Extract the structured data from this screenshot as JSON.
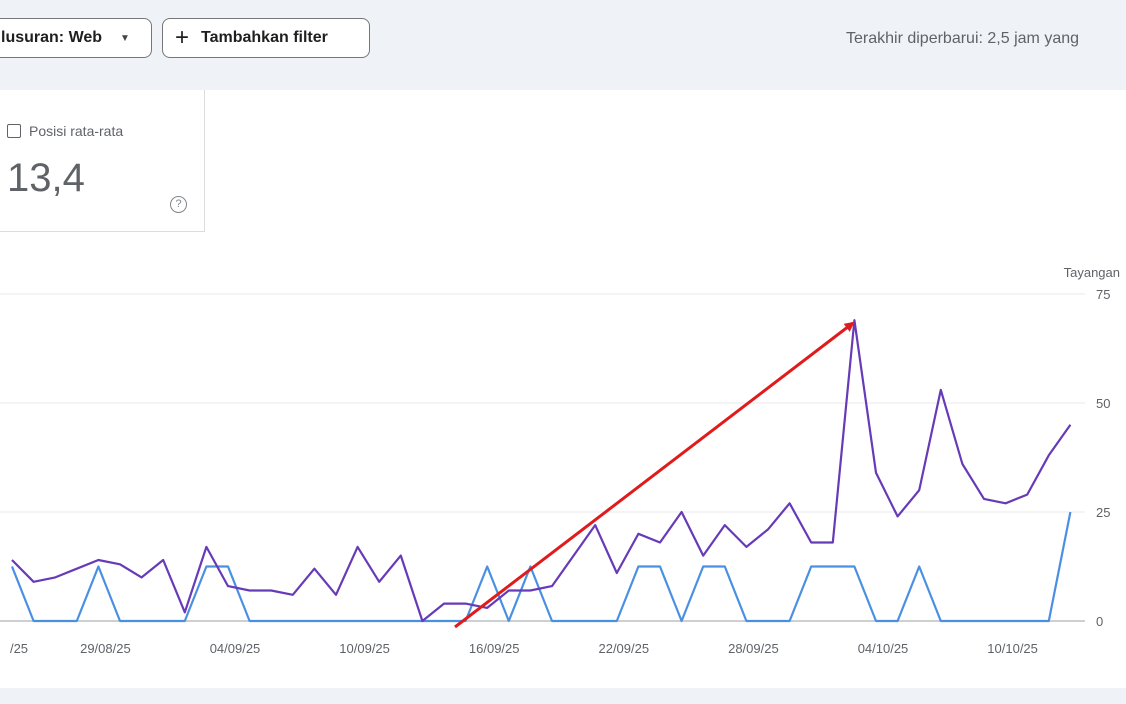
{
  "toolbar": {
    "search_type_label": "lusuran: Web",
    "add_filter_label": "Tambahkan filter",
    "last_updated": "Terakhir diperbarui: 2,5 jam yang"
  },
  "metric_card": {
    "label": "Posisi rata-rata",
    "value": "13,4",
    "help_icon": "help-icon"
  },
  "chart_data": {
    "type": "line",
    "y_axis_label": "Tayangan",
    "ylim": [
      0,
      75
    ],
    "y_ticks": [
      0,
      25,
      50,
      75
    ],
    "grid": true,
    "x_tick_labels": [
      "/25",
      "29/08/25",
      "04/09/25",
      "10/09/25",
      "16/09/25",
      "22/09/25",
      "28/09/25",
      "04/10/25",
      "10/10/25"
    ],
    "x_tick_indices": [
      0,
      4,
      10,
      16,
      22,
      28,
      34,
      40,
      46
    ],
    "series": [
      {
        "color": "#673ab7",
        "values": [
          14,
          9,
          10,
          12,
          14,
          13,
          10,
          14,
          2,
          17,
          8,
          7,
          7,
          6,
          12,
          6,
          17,
          9,
          15,
          0,
          4,
          4,
          3,
          7,
          7,
          8,
          15,
          22,
          11,
          20,
          18,
          25,
          15,
          22,
          17,
          21,
          27,
          18,
          18,
          69,
          34,
          24,
          30,
          53,
          36,
          28,
          27,
          29,
          38,
          45
        ]
      },
      {
        "color": "#4a90e2",
        "values": [
          12.5,
          0,
          0,
          0,
          12.5,
          0,
          0,
          0,
          0,
          12.5,
          12.5,
          0,
          0,
          0,
          0,
          0,
          0,
          0,
          0,
          0,
          0,
          0,
          12.5,
          0,
          12.5,
          0,
          0,
          0,
          0,
          12.5,
          12.5,
          0,
          12.5,
          12.5,
          0,
          0,
          0,
          12.5,
          12.5,
          12.5,
          0,
          0,
          12.5,
          0,
          0,
          0,
          0,
          0,
          0,
          25
        ]
      }
    ],
    "annotation": {
      "type": "arrow",
      "color": "#e01b1b"
    }
  }
}
